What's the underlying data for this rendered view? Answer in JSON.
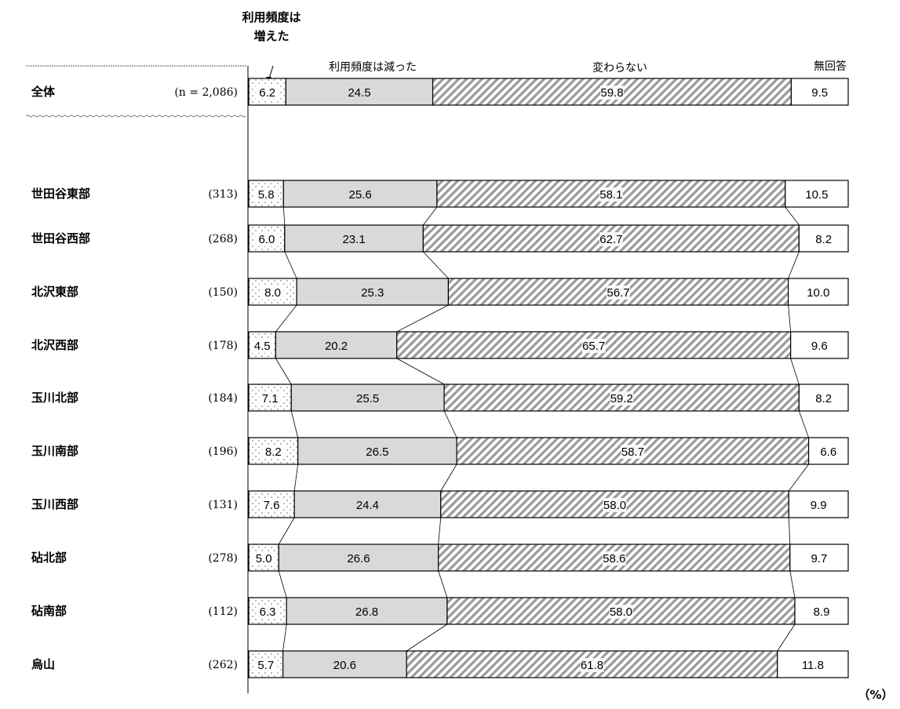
{
  "chart_data": {
    "type": "bar",
    "stacked": true,
    "orientation": "horizontal",
    "unit_label": "（%）",
    "series": [
      {
        "name": "利用頻度は増えた",
        "name_lines": [
          "利用頻度は",
          "増えた"
        ],
        "pattern": "dotted"
      },
      {
        "name": "利用頻度は減った",
        "pattern": "gray"
      },
      {
        "name": "変わらない",
        "pattern": "hatched"
      },
      {
        "name": "無回答",
        "pattern": "white"
      }
    ],
    "rows": [
      {
        "label": "全体",
        "n": "(n = 2,086)",
        "values": [
          6.2,
          24.5,
          59.8,
          9.5
        ]
      },
      {
        "label": "世田谷東部",
        "n": "(313)",
        "values": [
          5.8,
          25.6,
          58.1,
          10.5
        ]
      },
      {
        "label": "世田谷西部",
        "n": "(268)",
        "values": [
          6.0,
          23.1,
          62.7,
          8.2
        ]
      },
      {
        "label": "北沢東部",
        "n": "(150)",
        "values": [
          8.0,
          25.3,
          56.7,
          10.0
        ]
      },
      {
        "label": "北沢西部",
        "n": "(178)",
        "values": [
          4.5,
          20.2,
          65.7,
          9.6
        ]
      },
      {
        "label": "玉川北部",
        "n": "(184)",
        "values": [
          7.1,
          25.5,
          59.2,
          8.2
        ]
      },
      {
        "label": "玉川南部",
        "n": "(196)",
        "values": [
          8.2,
          26.5,
          58.7,
          6.6
        ]
      },
      {
        "label": "玉川西部",
        "n": "(131)",
        "values": [
          7.6,
          24.4,
          58.0,
          9.9
        ]
      },
      {
        "label": "砧北部",
        "n": "(278)",
        "values": [
          5.0,
          26.6,
          58.6,
          9.7
        ]
      },
      {
        "label": "砧南部",
        "n": "(112)",
        "values": [
          6.3,
          26.8,
          58.0,
          8.9
        ]
      },
      {
        "label": "烏山",
        "n": "(262)",
        "values": [
          5.7,
          20.6,
          61.8,
          11.8
        ]
      }
    ]
  }
}
